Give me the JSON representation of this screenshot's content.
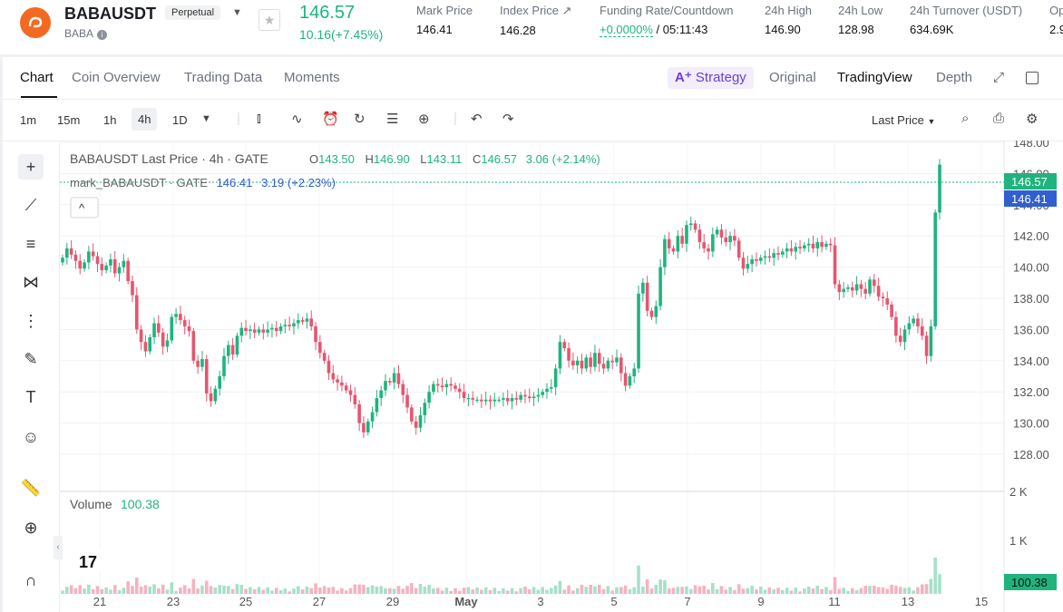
{
  "header": {
    "symbol": "BABAUSDT",
    "contract_type": "Perpetual",
    "underlying": "BABA",
    "last_price": "146.57",
    "change": "10.16(+7.45%)",
    "stats": [
      {
        "label": "Mark Price",
        "value": "146.41"
      },
      {
        "label": "Index Price ↗",
        "value": "146.28"
      },
      {
        "label": "Funding Rate/Countdown",
        "value": "+0.0000%",
        "value2": " / 05:11:43"
      },
      {
        "label": "24h High",
        "value": "146.90"
      },
      {
        "label": "24h Low",
        "value": "128.98"
      },
      {
        "label": "24h Turnover (USDT)",
        "value": "634.69K"
      },
      {
        "label": "Op",
        "value": "2.9"
      }
    ]
  },
  "tabs": [
    "Chart",
    "Coin Overview",
    "Trading Data",
    "Moments"
  ],
  "views": {
    "strategy": "Strategy",
    "original": "Original",
    "tradingview": "TradingView",
    "depth": "Depth"
  },
  "toolbar": {
    "timeframes": [
      "1m",
      "15m",
      "1h",
      "4h",
      "1D"
    ],
    "active_timeframe": "4h",
    "price_type": "Last Price"
  },
  "legend": {
    "title": "BABAUSDT Last Price · 4h · GATE",
    "o_label": "O",
    "o": "143.50",
    "h_label": "H",
    "h": "146.90",
    "l_label": "L",
    "l": "143.11",
    "c_label": "C",
    "c": "146.57",
    "chg": "3.06 (+2.14%)",
    "mark_title": "mark_BABAUSDT · GATE",
    "mark_value": "146.41",
    "mark_chg": "3.19 (+2.23%)"
  },
  "volume": {
    "label": "Volume",
    "value": "100.38",
    "axis_labels": [
      "2 K",
      "1 K"
    ]
  },
  "price_tags": {
    "last": "146.57",
    "mark": "146.41"
  },
  "chart_data": {
    "type": "candlestick",
    "y_axis": [
      148,
      146,
      144,
      142,
      140,
      138,
      136,
      134,
      132,
      130,
      128
    ],
    "y_tick_labels": [
      "148.00",
      "146.00",
      "144.00",
      "142.00",
      "140.00",
      "138.00",
      "136.00",
      "134.00",
      "132.00",
      "130.00",
      "128.00"
    ],
    "x_tick_labels": [
      "21",
      "23",
      "25",
      "27",
      "29",
      "May",
      "3",
      "5",
      "7",
      "9",
      "11",
      "13",
      "15"
    ],
    "closes": [
      140.6,
      141.2,
      140.8,
      140.4,
      139.9,
      140.3,
      141.0,
      140.7,
      140.2,
      139.8,
      140.1,
      140.5,
      139.6,
      140.0,
      140.4,
      139.1,
      138.2,
      136.0,
      135.2,
      134.6,
      135.5,
      136.4,
      135.8,
      134.9,
      135.3,
      136.8,
      137.0,
      136.6,
      136.2,
      135.9,
      134.0,
      133.6,
      134.1,
      131.9,
      131.4,
      132.2,
      133.0,
      134.3,
      135.0,
      134.4,
      135.6,
      136.1,
      135.9,
      136.0,
      135.8,
      136.0,
      135.8,
      136.0,
      136.1,
      135.9,
      136.2,
      136.3,
      136.2,
      136.4,
      136.6,
      136.5,
      136.7,
      136.2,
      135.2,
      134.5,
      134.0,
      133.2,
      132.8,
      132.6,
      132.4,
      132.1,
      131.8,
      131.2,
      130.0,
      129.4,
      130.1,
      130.7,
      131.6,
      132.1,
      132.7,
      132.6,
      133.2,
      132.5,
      131.8,
      131.0,
      130.1,
      129.7,
      130.5,
      131.3,
      132.0,
      132.5,
      132.4,
      132.3,
      132.5,
      132.4,
      132.2,
      132.0,
      131.6,
      131.6,
      131.5,
      131.5,
      131.4,
      131.5,
      131.4,
      131.5,
      131.5,
      131.6,
      131.4,
      131.6,
      131.5,
      131.8,
      131.7,
      131.6,
      131.7,
      131.8,
      132.0,
      132.2,
      132.3,
      133.5,
      135.2,
      134.8,
      134.0,
      133.7,
      134.0,
      133.5,
      134.2,
      133.6,
      134.5,
      133.8,
      133.5,
      134.0,
      133.9,
      134.2,
      133.2,
      132.4,
      133.0,
      133.5,
      138.3,
      139.0,
      137.2,
      136.8,
      137.5,
      140.0,
      141.8,
      141.2,
      141.0,
      142.0,
      141.5,
      142.7,
      142.8,
      142.4,
      141.6,
      141.2,
      141.0,
      142.1,
      142.4,
      141.9,
      141.6,
      142.0,
      141.7,
      140.6,
      139.9,
      140.2,
      140.5,
      140.4,
      140.6,
      140.7,
      140.6,
      140.9,
      140.8,
      141.0,
      141.2,
      141.0,
      141.3,
      141.2,
      141.4,
      141.5,
      141.2,
      141.6,
      141.3,
      141.5,
      141.4,
      138.9,
      138.4,
      138.6,
      138.7,
      138.5,
      138.9,
      138.6,
      138.3,
      139.2,
      138.8,
      138.1,
      138.0,
      137.6,
      136.8,
      135.6,
      135.2,
      136.0,
      136.4,
      136.7,
      136.2,
      135.6,
      134.3,
      136.2,
      143.5,
      146.57
    ],
    "volume_max": 2000
  }
}
